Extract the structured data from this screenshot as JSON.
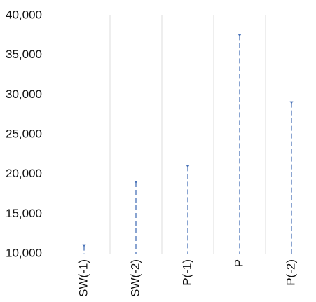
{
  "chart_data": {
    "type": "stem",
    "categories": [
      "SW(-1)",
      "SW(-2)",
      "P(-1)",
      "P",
      "P(-2)"
    ],
    "values": [
      11000,
      19000,
      21000,
      37500,
      29000
    ],
    "color": "#4a73b8",
    "ylim": [
      10000,
      40000
    ],
    "yticks": [
      {
        "value": 10000,
        "label": "10,000"
      },
      {
        "value": 15000,
        "label": "15,000"
      },
      {
        "value": 20000,
        "label": "20,000"
      },
      {
        "value": 25000,
        "label": "25,000"
      },
      {
        "value": 30000,
        "label": "30,000"
      },
      {
        "value": 35000,
        "label": "35,000"
      },
      {
        "value": 40000,
        "label": "40,000"
      }
    ],
    "grid": true
  }
}
